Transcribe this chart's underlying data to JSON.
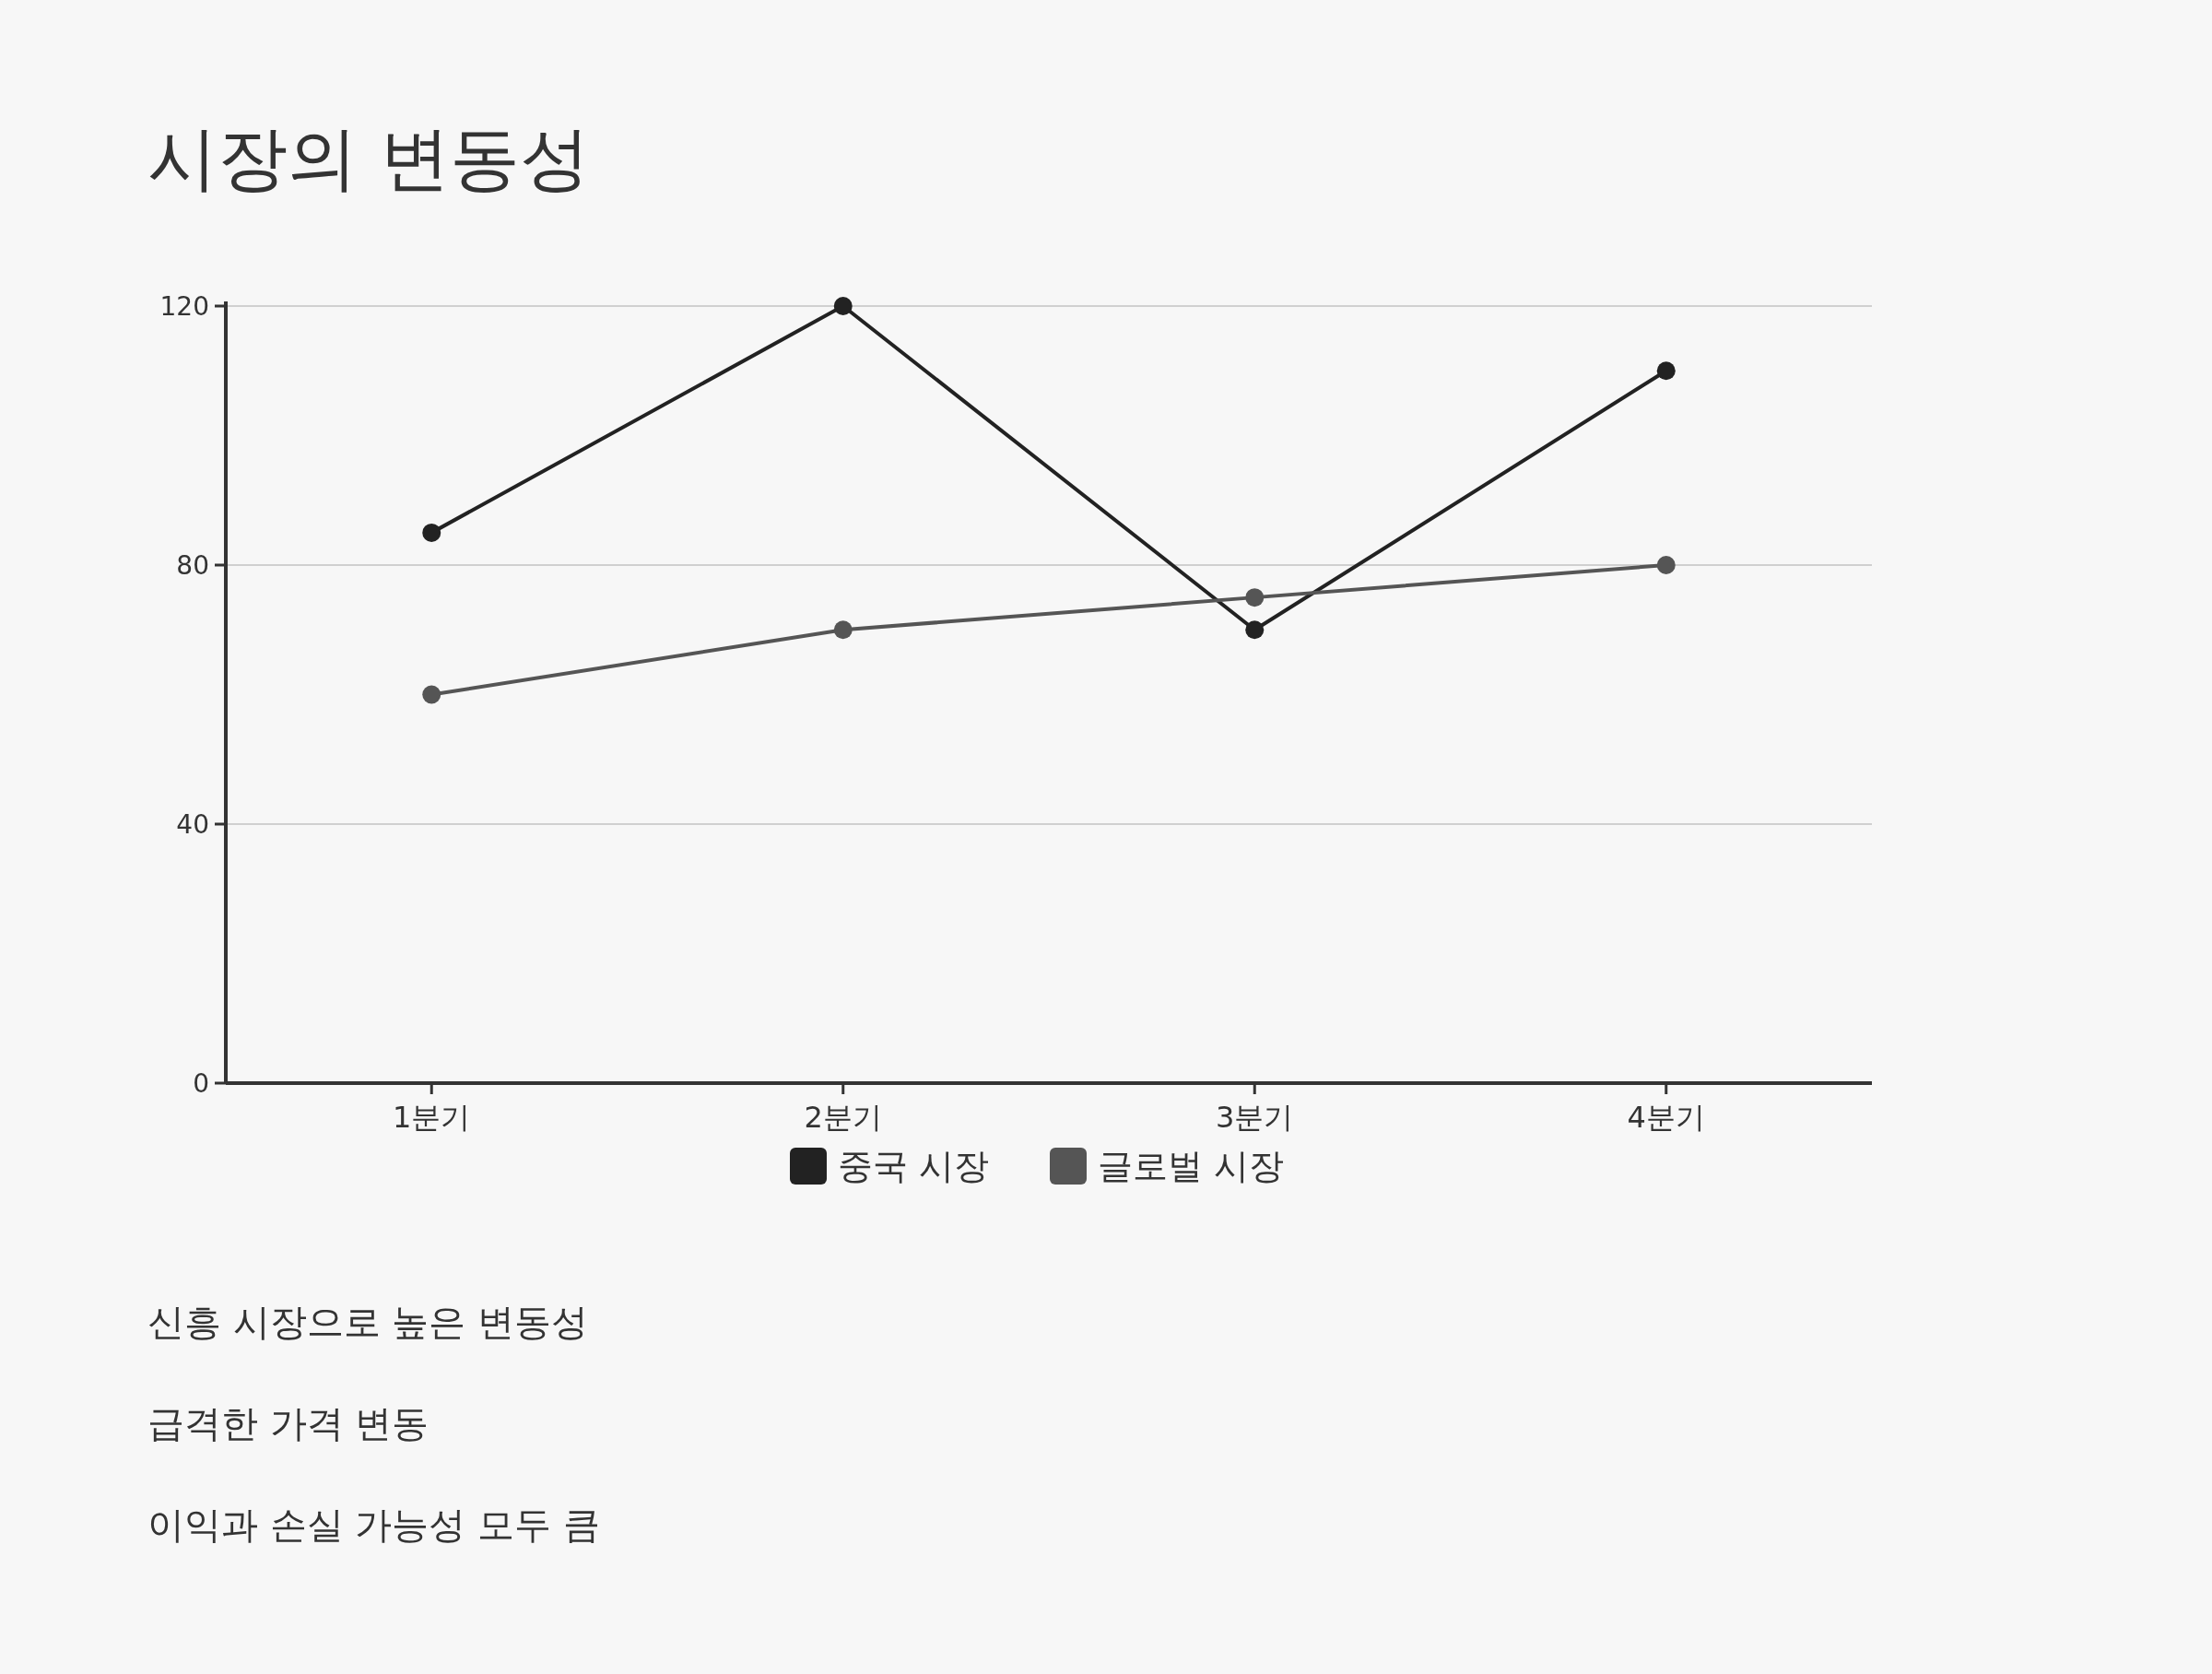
{
  "chart_data": {
    "type": "line",
    "title": "시장의 변동성",
    "categories": [
      "1분기",
      "2분기",
      "3분기",
      "4분기"
    ],
    "series": [
      {
        "name": "중국 시장",
        "color": "#222222",
        "values": [
          85,
          120,
          70,
          110
        ]
      },
      {
        "name": "글로벌 시장",
        "color": "#555555",
        "values": [
          60,
          70,
          75,
          80
        ]
      }
    ],
    "ylim": [
      0,
      120
    ],
    "yticks": [
      0,
      40,
      80,
      120
    ],
    "grid": "y",
    "legend": "bottom",
    "marker": "circle",
    "line_style": "solid",
    "annotations": [
      "신흥 시장으로 높은 변동성",
      "급격한 가격 변동",
      "이익과 손실 가능성 모두 큼"
    ]
  }
}
